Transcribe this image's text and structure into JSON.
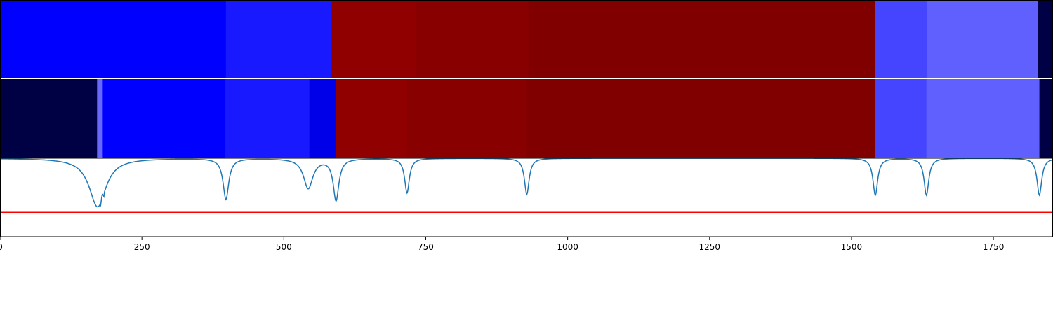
{
  "chart_data": {
    "type": "heatmap",
    "title": "",
    "xlabel": "",
    "ylabel": "",
    "xlim": [
      0,
      1855
    ],
    "grid": false,
    "legend": "none",
    "x_ticks": [
      0,
      250,
      500,
      750,
      1000,
      1250,
      1500,
      1750
    ],
    "tick_labels": [
      "0",
      "250",
      "500",
      "750",
      "1000",
      "1250",
      "1500",
      "1750"
    ],
    "heatmap_rows": [
      {
        "segments": [
          {
            "start": 0,
            "end": 398,
            "color": "#0000ff"
          },
          {
            "start": 398,
            "end": 584,
            "color": "#1919ff"
          },
          {
            "start": 584,
            "end": 732,
            "color": "#900000"
          },
          {
            "start": 732,
            "end": 931,
            "color": "#880000"
          },
          {
            "start": 931,
            "end": 1541,
            "color": "#800000"
          },
          {
            "start": 1541,
            "end": 1633,
            "color": "#4545ff"
          },
          {
            "start": 1633,
            "end": 1829,
            "color": "#6060ff"
          },
          {
            "start": 1829,
            "end": 1855,
            "color": "#000044"
          }
        ]
      },
      {
        "segments": [
          {
            "start": 0,
            "end": 171,
            "color": "#000044"
          },
          {
            "start": 171,
            "end": 181,
            "color": "#6868ff"
          },
          {
            "start": 181,
            "end": 397,
            "color": "#0000ff"
          },
          {
            "start": 397,
            "end": 545,
            "color": "#1919ff"
          },
          {
            "start": 545,
            "end": 592,
            "color": "#0000e8"
          },
          {
            "start": 592,
            "end": 717,
            "color": "#900000"
          },
          {
            "start": 717,
            "end": 928,
            "color": "#880000"
          },
          {
            "start": 928,
            "end": 1542,
            "color": "#800000"
          },
          {
            "start": 1542,
            "end": 1632,
            "color": "#4545ff"
          },
          {
            "start": 1632,
            "end": 1831,
            "color": "#6060ff"
          },
          {
            "start": 1831,
            "end": 1855,
            "color": "#000044"
          }
        ]
      }
    ],
    "signal": {
      "color": "#1f77b4",
      "ylim": [
        0,
        1
      ],
      "baseline": 1.0,
      "dips": [
        {
          "x": 172,
          "depth": 0.62,
          "width": 18
        },
        {
          "x": 398,
          "depth": 0.52,
          "width": 6
        },
        {
          "x": 543,
          "depth": 0.38,
          "width": 10
        },
        {
          "x": 592,
          "depth": 0.53,
          "width": 6
        },
        {
          "x": 717,
          "depth": 0.44,
          "width": 5
        },
        {
          "x": 928,
          "depth": 0.46,
          "width": 5
        },
        {
          "x": 1542,
          "depth": 0.47,
          "width": 5
        },
        {
          "x": 1632,
          "depth": 0.47,
          "width": 5
        },
        {
          "x": 1831,
          "depth": 0.47,
          "width": 5
        }
      ]
    },
    "threshold": {
      "value": 0.31,
      "color": "#ff0000"
    }
  }
}
